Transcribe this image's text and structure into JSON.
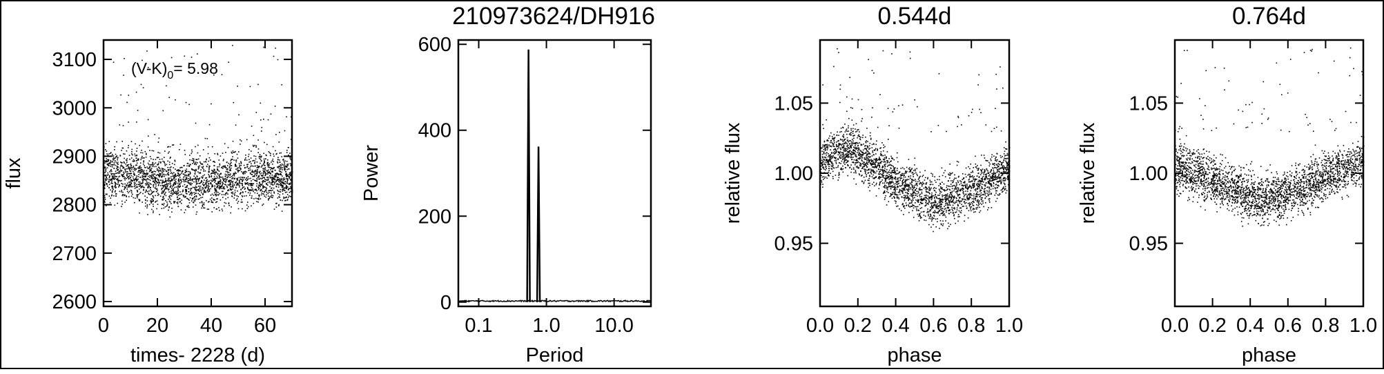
{
  "figure": {
    "title": "210973624/DH916",
    "annotation": {
      "prefix": "(V-K)",
      "subscript": "0",
      "suffix": "= 5.98"
    }
  },
  "chart_data": [
    {
      "type": "scatter",
      "title": "",
      "xlabel": "times- 2228 (d)",
      "ylabel": "flux",
      "xlim": [
        0,
        70
      ],
      "ylim": [
        2590,
        3140
      ],
      "xticks": [
        0,
        20,
        40,
        60
      ],
      "yticks": [
        2600,
        2700,
        2800,
        2900,
        3000,
        3100
      ],
      "series": [
        {
          "band": true,
          "x_range": [
            0,
            70
          ],
          "center": [
            [
              0,
              2865
            ],
            [
              10,
              2858
            ],
            [
              20,
              2850
            ],
            [
              30,
              2845
            ],
            [
              40,
              2848
            ],
            [
              50,
              2856
            ],
            [
              60,
              2862
            ],
            [
              70,
              2855
            ]
          ],
          "half_width": 55,
          "outlier_range": [
            2920,
            3130
          ],
          "points": 2600,
          "outliers": 90
        }
      ]
    },
    {
      "type": "line",
      "title": "",
      "xlabel": "Period",
      "ylabel": "Power",
      "xscale": "log",
      "xlim": [
        0.05,
        35
      ],
      "ylim": [
        -10,
        610
      ],
      "xticks": [
        0.1,
        1.0,
        10.0
      ],
      "xticklabels": [
        "0.1",
        "1.0",
        "10.0"
      ],
      "yticks": [
        0,
        200,
        400,
        600
      ],
      "peaks": [
        {
          "period": 0.544,
          "power": 588
        },
        {
          "period": 0.764,
          "power": 362
        }
      ]
    },
    {
      "type": "scatter",
      "title": "0.544d",
      "xlabel": "phase",
      "ylabel": "relative flux",
      "xlim": [
        0,
        1
      ],
      "ylim": [
        0.905,
        1.095
      ],
      "xticks": [
        0.0,
        0.2,
        0.4,
        0.6,
        0.8,
        1.0
      ],
      "xticklabels": [
        "0.0",
        "0.2",
        "0.4",
        "0.6",
        "0.8",
        "1.0"
      ],
      "yticks": [
        0.95,
        1.0,
        1.05
      ],
      "yticklabels": [
        "0.95",
        "1.00",
        "1.05"
      ],
      "series": [
        {
          "band": true,
          "x_range": [
            0,
            1
          ],
          "center": [
            [
              0,
              1.01
            ],
            [
              0.15,
              1.018
            ],
            [
              0.3,
              1.005
            ],
            [
              0.45,
              0.99
            ],
            [
              0.62,
              0.98
            ],
            [
              0.8,
              0.988
            ],
            [
              1.0,
              1.005
            ]
          ],
          "half_width": 0.017,
          "outlier_range": [
            1.03,
            1.09
          ],
          "points": 2600,
          "outliers": 70
        }
      ]
    },
    {
      "type": "scatter",
      "title": "0.764d",
      "xlabel": "phase",
      "ylabel": "relative flux",
      "xlim": [
        0,
        1
      ],
      "ylim": [
        0.905,
        1.095
      ],
      "xticks": [
        0.0,
        0.2,
        0.4,
        0.6,
        0.8,
        1.0
      ],
      "xticklabels": [
        "0.0",
        "0.2",
        "0.4",
        "0.6",
        "0.8",
        "1.0"
      ],
      "yticks": [
        0.95,
        1.0,
        1.05
      ],
      "yticklabels": [
        "0.95",
        "1.00",
        "1.05"
      ],
      "series": [
        {
          "band": true,
          "x_range": [
            0,
            1
          ],
          "center": [
            [
              0,
              1.005
            ],
            [
              0.15,
              0.998
            ],
            [
              0.3,
              0.99
            ],
            [
              0.45,
              0.982
            ],
            [
              0.6,
              0.986
            ],
            [
              0.8,
              0.998
            ],
            [
              1.0,
              1.008
            ]
          ],
          "half_width": 0.017,
          "outlier_range": [
            1.03,
            1.09
          ],
          "points": 2600,
          "outliers": 70
        }
      ]
    }
  ]
}
